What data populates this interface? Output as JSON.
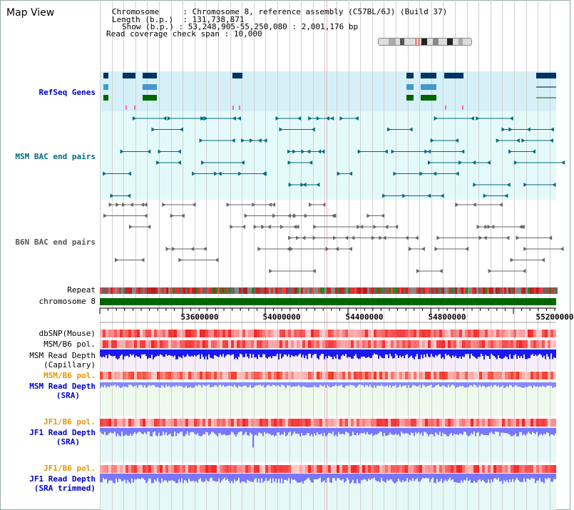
{
  "app_title": "Map View",
  "info": {
    "chromosome_label": "Chromosome",
    "chromosome_value": "Chromosome 8, reference assembly (C57BL/6J) (Build 37)",
    "length_label": "Length (b.p.)",
    "length_value": "131,738,871",
    "show_label": "Show (b.p.)",
    "show_value": "53,248,905-55,250,080 : 2,001,176 bp",
    "coverage_label": "Read coverage check span",
    "coverage_value": "10,000",
    "sep": " : "
  },
  "tracks": {
    "refseq": "RefSeq Genes",
    "msm_bac": "MSM BAC end pairs",
    "b6n_bac": "B6N BAC end pairs",
    "repeat": "Repeat",
    "chromosome": "chromosome 8",
    "dbsnp": "dbSNP(Mouse)",
    "msm_b6_pol_1": "MSM/B6 pol.",
    "msm_read_depth_cap_1": "MSM Read Depth",
    "msm_read_depth_cap_2": "(Capillary)",
    "msm_b6_pol_2": "MSM/B6 pol.",
    "msm_read_depth_sra_1": "MSM Read Depth",
    "msm_read_depth_sra_2": "(SRA)",
    "jf1_b6_pol_1": "JF1/B6 pol.",
    "jf1_read_depth_sra_1": "JF1 Read Depth",
    "jf1_read_depth_sra_2": "(SRA)",
    "jf1_b6_pol_2": "JF1/B6 pol.",
    "jf1_read_depth_trim_1": "JF1 Read Depth",
    "jf1_read_depth_trim_2": "(SRA trimmed)"
  },
  "axis": {
    "ticks": [
      "53600000",
      "54000000",
      "54400000",
      "54800000",
      "55200000"
    ]
  },
  "colors": {
    "refseq_bg": "#d6f0f8",
    "bac_bg": "#e0f8f8",
    "gene_dark": "#003366",
    "gene_light": "#4499cc",
    "gene_green": "#006600",
    "msm_feature": "#006a80",
    "b6n_feature": "#666666",
    "chromosome_bar": "#006600",
    "depth_blue": "#0000dd",
    "depth_light": "#7777ff",
    "pol_red": "#ff5555"
  }
}
